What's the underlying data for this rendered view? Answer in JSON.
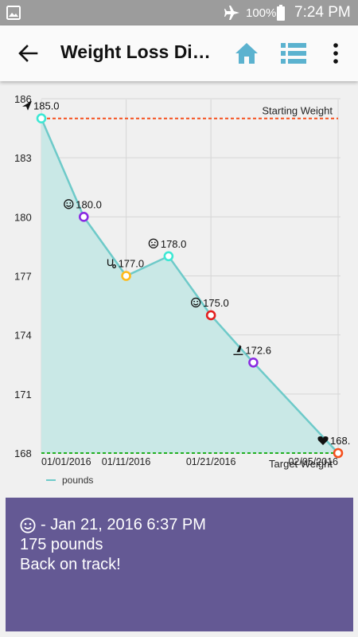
{
  "status_bar": {
    "battery": "100%",
    "time": "7:24 PM",
    "icons": [
      "image-icon",
      "airplane-icon",
      "battery-icon"
    ]
  },
  "app_bar": {
    "title": "Weight Loss Dia…",
    "icons": [
      "back-arrow-icon",
      "home-icon",
      "list-icon",
      "more-vert-icon"
    ],
    "accent": "#5bb2cf"
  },
  "chart_data": {
    "type": "area",
    "x": [
      "01/01/2016",
      "01/06/2016",
      "01/11/2016",
      "01/16/2016",
      "01/21/2016",
      "01/26/2016",
      "02/05/2016"
    ],
    "x_tick_labels": [
      "01/01/2016",
      "01/11/2016",
      "01/21/2016",
      "02/05/2016"
    ],
    "series": [
      {
        "name": "pounds",
        "values": [
          185.0,
          180.0,
          177.0,
          178.0,
          175.0,
          172.6,
          168.0
        ],
        "point_labels": [
          "185.0",
          "180.0",
          "177.0",
          "178.0",
          "175.0",
          "172.6",
          "168."
        ],
        "point_icons": [
          "paper-plane-icon",
          "smiley-icon",
          "stethoscope-icon",
          "neutral-face-icon",
          "smiley-icon",
          "bottle-icon",
          "heart-icon"
        ],
        "point_colors": [
          "#3de8d4",
          "#8a2be2",
          "#ffbb1c",
          "#3de8d4",
          "#e32020",
          "#8a2be2",
          "#f5501e"
        ]
      }
    ],
    "y_tick_labels": [
      "168",
      "171",
      "174",
      "177",
      "180",
      "183",
      "186"
    ],
    "ylim": [
      168,
      186
    ],
    "reference_lines": [
      {
        "label": "Starting Weight",
        "value": 185,
        "color": "#f5501e"
      },
      {
        "label": "Target Weight",
        "value": 168,
        "color": "#22b022"
      }
    ],
    "line_color": "#6ecac9",
    "fill_color": "#c9e8e6",
    "grid": true,
    "legend": {
      "position": "bottom-left",
      "label": "pounds"
    }
  },
  "entry_card": {
    "header": "- Jan 21, 2016 6:37 PM",
    "weight": "175 pounds",
    "note": "Back on track!",
    "icon": "smiley-icon",
    "background": "#645994"
  }
}
